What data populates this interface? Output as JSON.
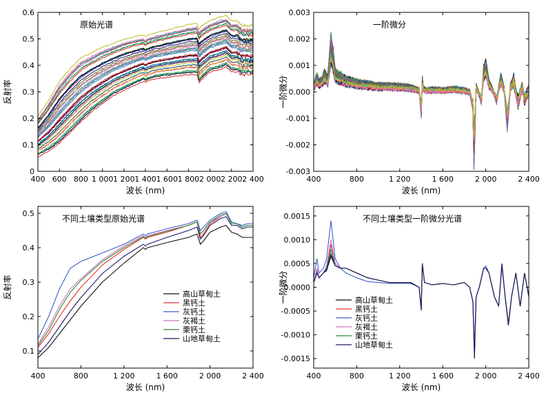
{
  "chart_data": [
    {
      "type": "line",
      "title": "原始光谱",
      "xlabel": "波长 (nm)",
      "ylabel": "反射率",
      "xlim": [
        400,
        2400
      ],
      "ylim": [
        0,
        0.6
      ],
      "xticks": [
        400,
        600,
        800,
        1000,
        1200,
        1400,
        1600,
        1800,
        2000,
        2200,
        2400
      ],
      "xticklabels": [
        "400",
        "600",
        "800",
        "1 000",
        "1 200",
        "1 400",
        "1 600",
        "1 800",
        "2 000",
        "2 200",
        "2 400"
      ],
      "yticks": [
        0,
        0.1,
        0.2,
        0.3,
        0.4,
        0.5,
        0.6
      ],
      "yticklabels": [
        "0",
        "0.1",
        "0.2",
        "0.3",
        "0.4",
        "0.5",
        "0.6"
      ],
      "grid": false,
      "series_count": 40,
      "envelope": {
        "x": [
          400,
          450,
          500,
          600,
          700,
          800,
          900,
          1000,
          1100,
          1200,
          1300,
          1380,
          1400,
          1420,
          1500,
          1600,
          1700,
          1800,
          1880,
          1900,
          1920,
          2000,
          2100,
          2150,
          2200,
          2250,
          2300,
          2350,
          2400
        ],
        "low": [
          0.06,
          0.07,
          0.08,
          0.11,
          0.15,
          0.19,
          0.23,
          0.26,
          0.29,
          0.31,
          0.33,
          0.345,
          0.34,
          0.345,
          0.355,
          0.36,
          0.365,
          0.37,
          0.37,
          0.34,
          0.35,
          0.38,
          0.39,
          0.4,
          0.38,
          0.38,
          0.37,
          0.37,
          0.37
        ],
        "high": [
          0.2,
          0.23,
          0.26,
          0.33,
          0.38,
          0.42,
          0.44,
          0.46,
          0.475,
          0.49,
          0.5,
          0.505,
          0.5,
          0.505,
          0.515,
          0.525,
          0.535,
          0.545,
          0.55,
          0.53,
          0.54,
          0.56,
          0.575,
          0.58,
          0.56,
          0.56,
          0.54,
          0.54,
          0.54
        ]
      }
    },
    {
      "type": "line",
      "title": "一阶微分",
      "xlabel": "波长 (nm)",
      "ylabel": "一阶微分",
      "xlim": [
        400,
        2400
      ],
      "ylim": [
        -0.003,
        0.003
      ],
      "xticks": [
        400,
        800,
        1200,
        1600,
        2000,
        2400
      ],
      "xticklabels": [
        "400",
        "800",
        "1 200",
        "1 600",
        "2 000",
        "2 400"
      ],
      "yticks": [
        -0.003,
        -0.002,
        -0.001,
        0,
        0.001,
        0.002,
        0.003
      ],
      "yticklabels": [
        "-0.003",
        "-0.002",
        "-0.001",
        "0.000",
        "0.001",
        "0.002",
        "0.003"
      ],
      "grid": false,
      "series_count": 40,
      "base": {
        "x": [
          400,
          430,
          450,
          480,
          500,
          530,
          560,
          580,
          600,
          650,
          700,
          800,
          900,
          1000,
          1100,
          1200,
          1300,
          1380,
          1400,
          1410,
          1420,
          1450,
          1500,
          1600,
          1700,
          1800,
          1850,
          1880,
          1890,
          1900,
          1910,
          1930,
          1960,
          1980,
          2000,
          2030,
          2060,
          2100,
          2140,
          2170,
          2200,
          2210,
          2230,
          2260,
          2300,
          2340,
          2360,
          2400
        ],
        "y": [
          0.0002,
          0.0005,
          0.0003,
          0.0004,
          0.0006,
          0.0004,
          0.0016,
          0.0012,
          0.0006,
          0.0005,
          0.0004,
          0.0003,
          0.00025,
          0.0002,
          0.0002,
          0.00018,
          0.00015,
          5e-05,
          -0.0007,
          0.0004,
          0.0001,
          5e-05,
          8e-05,
          5e-05,
          0.0001,
          5e-05,
          0.0,
          -0.0005,
          -0.0022,
          -0.0012,
          0.0002,
          0.0,
          -0.0003,
          0.0007,
          0.0009,
          0.0003,
          0.0001,
          -0.0003,
          0.0005,
          0.0001,
          -0.0011,
          -0.0007,
          0.0002,
          0.0004,
          -0.0004,
          0.0002,
          -0.0003,
          0.0001
        ]
      }
    },
    {
      "type": "line",
      "title": "不同土壤类型原始光谱",
      "xlabel": "波长 (nm)",
      "ylabel": "反射率",
      "xlim": [
        400,
        2400
      ],
      "ylim": [
        0.05,
        0.52
      ],
      "xticks": [
        400,
        800,
        1200,
        1600,
        2000,
        2400
      ],
      "xticklabels": [
        "400",
        "800",
        "1 200",
        "1 600",
        "2 000",
        "2 400"
      ],
      "yticks": [
        0.1,
        0.2,
        0.3,
        0.4,
        0.5
      ],
      "yticklabels": [
        "0.1",
        "0.2",
        "0.3",
        "0.4",
        "0.5"
      ],
      "grid": false,
      "legend": "center-right",
      "x": [
        400,
        500,
        600,
        700,
        800,
        1000,
        1200,
        1380,
        1400,
        1420,
        1600,
        1800,
        1880,
        1910,
        1940,
        2000,
        2100,
        2150,
        2200,
        2250,
        2300,
        2350,
        2400
      ],
      "series": [
        {
          "name": "高山草甸土",
          "color": "#111111",
          "values": [
            0.08,
            0.11,
            0.15,
            0.19,
            0.23,
            0.3,
            0.355,
            0.4,
            0.395,
            0.4,
            0.415,
            0.43,
            0.44,
            0.41,
            0.42,
            0.445,
            0.46,
            0.465,
            0.445,
            0.44,
            0.43,
            0.43,
            0.43
          ]
        },
        {
          "name": "黑钙土",
          "color": "#e83030",
          "values": [
            0.11,
            0.15,
            0.2,
            0.245,
            0.285,
            0.35,
            0.395,
            0.43,
            0.425,
            0.43,
            0.445,
            0.465,
            0.475,
            0.43,
            0.44,
            0.47,
            0.49,
            0.5,
            0.47,
            0.47,
            0.46,
            0.465,
            0.465
          ]
        },
        {
          "name": "灰钙土",
          "color": "#3a5fc8",
          "values": [
            0.135,
            0.2,
            0.28,
            0.34,
            0.36,
            0.385,
            0.41,
            0.44,
            0.435,
            0.44,
            0.455,
            0.47,
            0.48,
            0.45,
            0.46,
            0.48,
            0.5,
            0.505,
            0.475,
            0.47,
            0.465,
            0.47,
            0.47
          ]
        },
        {
          "name": "灰褐土",
          "color": "#d070c8",
          "values": [
            0.12,
            0.17,
            0.23,
            0.28,
            0.31,
            0.365,
            0.405,
            0.435,
            0.43,
            0.435,
            0.45,
            0.465,
            0.475,
            0.44,
            0.45,
            0.475,
            0.49,
            0.5,
            0.47,
            0.47,
            0.46,
            0.465,
            0.465
          ]
        },
        {
          "name": "栗钙土",
          "color": "#2e8b2e",
          "values": [
            0.115,
            0.16,
            0.22,
            0.27,
            0.305,
            0.36,
            0.4,
            0.432,
            0.427,
            0.432,
            0.448,
            0.465,
            0.475,
            0.44,
            0.45,
            0.475,
            0.495,
            0.5,
            0.47,
            0.47,
            0.46,
            0.465,
            0.465
          ]
        },
        {
          "name": "山地草甸土",
          "color": "#1a1a66",
          "values": [
            0.09,
            0.125,
            0.17,
            0.215,
            0.255,
            0.325,
            0.375,
            0.41,
            0.405,
            0.41,
            0.43,
            0.45,
            0.46,
            0.425,
            0.435,
            0.465,
            0.485,
            0.49,
            0.465,
            0.465,
            0.455,
            0.46,
            0.46
          ]
        }
      ]
    },
    {
      "type": "line",
      "title": "不同土壤类型一阶微分光谱",
      "xlabel": "波长 (nm)",
      "ylabel": "一阶微分",
      "xlim": [
        400,
        2400
      ],
      "ylim": [
        -0.0017,
        0.0017
      ],
      "xticks": [
        400,
        800,
        1200,
        1600,
        2000,
        2400
      ],
      "xticklabels": [
        "400",
        "800",
        "1 200",
        "1 600",
        "2 000",
        "2 400"
      ],
      "yticks": [
        -0.0015,
        -0.001,
        -0.0005,
        0,
        0.0005,
        0.001,
        0.0015
      ],
      "yticklabels": [
        "-0.0015",
        "-0.0010",
        "-0.0005",
        "0.0000",
        "0.0005",
        "0.0010",
        "0.0015"
      ],
      "grid": false,
      "legend": "lower-left",
      "x": [
        400,
        430,
        450,
        490,
        520,
        560,
        600,
        650,
        700,
        800,
        900,
        1000,
        1100,
        1200,
        1300,
        1380,
        1400,
        1410,
        1430,
        1500,
        1600,
        1700,
        1800,
        1850,
        1880,
        1895,
        1910,
        1940,
        1980,
        2000,
        2030,
        2080,
        2120,
        2150,
        2180,
        2210,
        2240,
        2280,
        2320,
        2360,
        2400
      ],
      "series": [
        {
          "name": "高山草甸土",
          "color": "#111111",
          "peak": 0.00065,
          "values": [
            0.0001,
            0.0003,
            0.0002,
            0.0003,
            0.00035,
            0.00065,
            0.00045,
            0.0004,
            0.0004,
            0.0003,
            0.0002,
            0.00015,
            0.0001,
            0.0001,
            0.0001,
            0.0,
            -0.00045,
            0.0005,
            0.0001,
            5e-05,
            8e-05,
            5e-05,
            0.0001,
            0.0,
            -0.0003,
            -0.0015,
            -0.0002,
            0.0,
            0.0004,
            0.0004,
            0.0003,
            -0.0002,
            -0.0004,
            0.0005,
            -0.0002,
            -0.0008,
            -0.0002,
            0.0003,
            -0.0004,
            0.0003,
            -0.0002
          ]
        },
        {
          "name": "黑钙土",
          "color": "#e83030",
          "peak": 0.0009,
          "values": [
            0.0001,
            0.00035,
            0.0002,
            0.0003,
            0.0004,
            0.0009,
            0.0005,
            0.0004,
            0.0004,
            0.0003,
            0.0002,
            0.00015,
            0.0001,
            0.0001,
            0.0001,
            0.0,
            -0.0005,
            0.0005,
            0.0001,
            5e-05,
            8e-05,
            5e-05,
            0.0001,
            0.0,
            -0.0003,
            -0.00135,
            -0.0002,
            0.0,
            0.0004,
            0.0004,
            0.0003,
            -0.0002,
            -0.0004,
            0.00045,
            -0.0002,
            -0.00075,
            -0.0002,
            0.0003,
            -0.0004,
            0.0003,
            -0.0002
          ]
        },
        {
          "name": "灰钙土",
          "color": "#3a5fc8",
          "peak": 0.0014,
          "values": [
            0.0002,
            0.0006,
            0.0003,
            0.0004,
            0.0006,
            0.0014,
            0.0006,
            0.0004,
            0.0003,
            0.0002,
            0.00012,
            0.0001,
            8e-05,
            8e-05,
            8e-05,
            0.0,
            -0.00045,
            0.0005,
            0.0001,
            5e-05,
            8e-05,
            5e-05,
            0.0001,
            0.0,
            -0.0003,
            -0.0013,
            -0.0002,
            0.0,
            0.0004,
            0.00045,
            0.0003,
            -0.0002,
            -0.0004,
            0.0005,
            -0.0002,
            -0.00075,
            -0.0002,
            0.0003,
            -0.0004,
            0.0003,
            -0.0002
          ]
        },
        {
          "name": "灰褐土",
          "color": "#d070c8",
          "peak": 0.001,
          "values": [
            0.0001,
            0.0004,
            0.0002,
            0.0003,
            0.00045,
            0.001,
            0.0005,
            0.0004,
            0.0004,
            0.0003,
            0.0002,
            0.00015,
            0.0001,
            0.0001,
            0.0001,
            0.0,
            -0.00048,
            0.0005,
            0.0001,
            5e-05,
            8e-05,
            5e-05,
            0.0001,
            0.0,
            -0.0003,
            -0.0014,
            -0.0002,
            0.0,
            0.0004,
            0.0004,
            0.0003,
            -0.0002,
            -0.0004,
            0.00048,
            -0.0002,
            -0.00078,
            -0.0002,
            0.0003,
            -0.0004,
            0.0003,
            -0.0002
          ]
        },
        {
          "name": "栗钙土",
          "color": "#2e8b2e",
          "peak": 0.0008,
          "values": [
            0.0001,
            0.0003,
            0.0002,
            0.0003,
            0.0004,
            0.0008,
            0.00045,
            0.0004,
            0.0004,
            0.0003,
            0.0002,
            0.00015,
            0.0001,
            0.0001,
            0.0001,
            0.0,
            -0.00046,
            0.0005,
            0.0001,
            5e-05,
            8e-05,
            5e-05,
            0.0001,
            0.0,
            -0.0003,
            -0.00138,
            -0.0002,
            0.0,
            0.0004,
            0.0004,
            0.0003,
            -0.0002,
            -0.0004,
            0.00046,
            -0.0002,
            -0.00076,
            -0.0002,
            0.0003,
            -0.0004,
            0.0003,
            -0.0002
          ]
        },
        {
          "name": "山地草甸土",
          "color": "#1a1a66",
          "peak": 0.0007,
          "values": [
            0.0001,
            0.0003,
            0.0002,
            0.0003,
            0.00038,
            0.0007,
            0.00045,
            0.0004,
            0.0004,
            0.0003,
            0.0002,
            0.00015,
            0.0001,
            0.0001,
            0.0001,
            0.0,
            -0.00047,
            0.0005,
            0.0001,
            5e-05,
            8e-05,
            5e-05,
            0.0001,
            0.0,
            -0.0003,
            -0.00145,
            -0.0002,
            0.0,
            0.0004,
            0.0004,
            0.0003,
            -0.0002,
            -0.0004,
            0.00048,
            -0.0002,
            -0.0008,
            -0.0002,
            0.0003,
            -0.0004,
            0.0003,
            -0.0002
          ]
        }
      ]
    }
  ]
}
